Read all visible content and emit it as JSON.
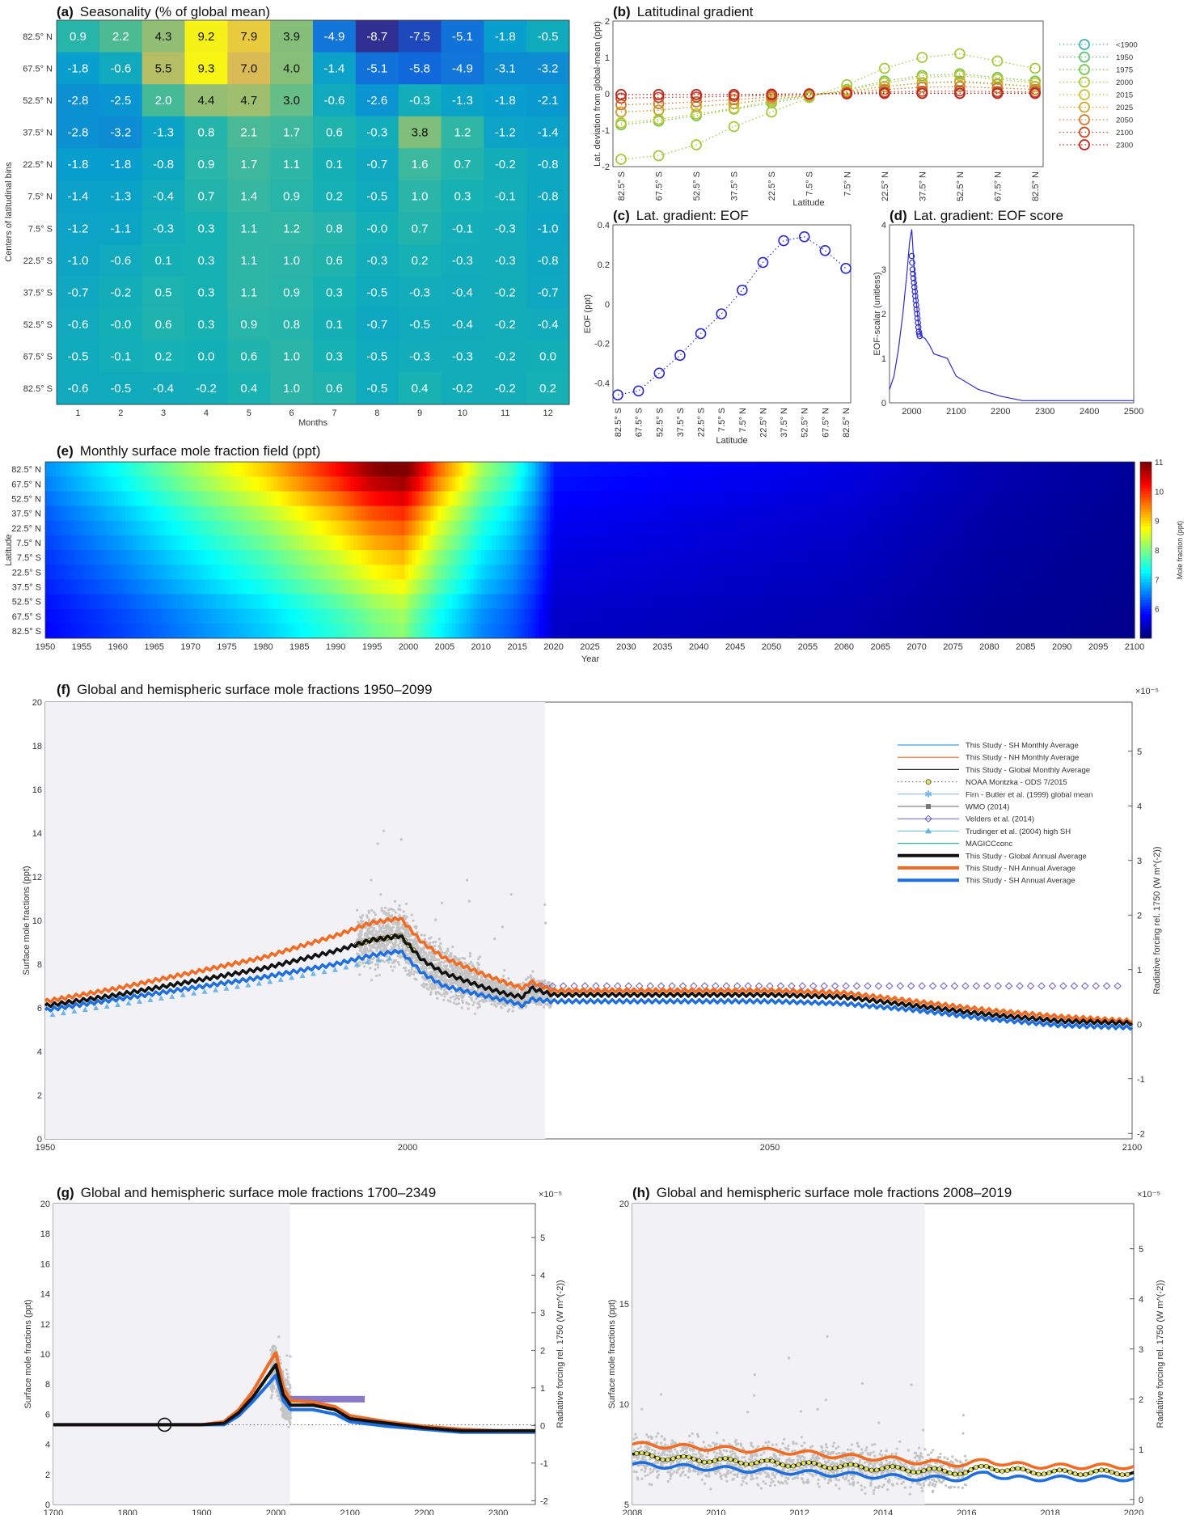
{
  "chart_data": [
    {
      "panel": "(a)",
      "type": "heatmap",
      "title": "Seasonality (% of global mean)",
      "xlabel": "Months",
      "ylabel": "Centers of latitudinal bins",
      "columns": [
        "1",
        "2",
        "3",
        "4",
        "5",
        "6",
        "7",
        "8",
        "9",
        "10",
        "11",
        "12"
      ],
      "rows": [
        "82.5° N",
        "67.5° N",
        "52.5° N",
        "37.5° N",
        "22.5° N",
        "7.5° N",
        "7.5° S",
        "22.5° S",
        "37.5° S",
        "52.5° S",
        "67.5° S",
        "82.5° S"
      ],
      "values": [
        [
          "0.9",
          "2.2",
          "4.3",
          "9.2",
          "7.9",
          "3.9",
          "-4.9",
          "-8.7",
          "-7.5",
          "-5.1",
          "-1.8",
          "-0.5"
        ],
        [
          "-1.8",
          "-0.6",
          "5.5",
          "9.3",
          "7.0",
          "4.0",
          "-1.4",
          "-5.1",
          "-5.8",
          "-4.9",
          "-3.1",
          "-3.2"
        ],
        [
          "-2.8",
          "-2.5",
          "2.0",
          "4.4",
          "4.7",
          "3.0",
          "-0.6",
          "-2.6",
          "-0.3",
          "-1.3",
          "-1.8",
          "-2.1"
        ],
        [
          "-2.8",
          "-3.2",
          "-1.3",
          "0.8",
          "2.1",
          "1.7",
          "0.6",
          "-0.3",
          "3.8",
          "1.2",
          "-1.2",
          "-1.4"
        ],
        [
          "-1.8",
          "-1.8",
          "-0.8",
          "0.9",
          "1.7",
          "1.1",
          "0.1",
          "-0.7",
          "1.6",
          "0.7",
          "-0.2",
          "-0.8"
        ],
        [
          "-1.4",
          "-1.3",
          "-0.4",
          "0.7",
          "1.4",
          "0.9",
          "0.2",
          "-0.5",
          "1.0",
          "0.3",
          "-0.1",
          "-0.8"
        ],
        [
          "-1.2",
          "-1.1",
          "-0.3",
          "0.3",
          "1.1",
          "1.2",
          "0.8",
          "-0.0",
          "0.7",
          "-0.1",
          "-0.3",
          "-1.0"
        ],
        [
          "-1.0",
          "-0.6",
          "0.1",
          "0.3",
          "1.1",
          "1.0",
          "0.6",
          "-0.3",
          "0.2",
          "-0.3",
          "-0.3",
          "-0.8"
        ],
        [
          "-0.7",
          "-0.2",
          "0.5",
          "0.3",
          "1.1",
          "0.9",
          "0.3",
          "-0.5",
          "-0.3",
          "-0.4",
          "-0.2",
          "-0.7"
        ],
        [
          "-0.6",
          "-0.0",
          "0.6",
          "0.3",
          "0.9",
          "0.8",
          "0.1",
          "-0.7",
          "-0.5",
          "-0.4",
          "-0.2",
          "-0.4"
        ],
        [
          "-0.5",
          "-0.1",
          "0.2",
          "0.0",
          "0.6",
          "1.0",
          "0.3",
          "-0.5",
          "-0.3",
          "-0.3",
          "-0.2",
          "0.0"
        ],
        [
          "-0.6",
          "-0.5",
          "-0.4",
          "-0.2",
          "0.4",
          "1.0",
          "0.6",
          "-0.5",
          "0.4",
          "-0.2",
          "-0.2",
          "0.2"
        ]
      ]
    },
    {
      "panel": "(b)",
      "type": "line",
      "title": "Latitudinal gradient",
      "xlabel": "Latitude",
      "ylabel": "Lat. deviation from global-mean (ppt)",
      "ylim": [
        -2,
        2
      ],
      "yticks": [
        "2",
        "1",
        "0",
        "-1",
        "-2"
      ],
      "x": [
        "82.5° S",
        "67.5° S",
        "52.5° S",
        "37.5° S",
        "22.5° S",
        "7.5° S",
        "7.5° N",
        "22.5° N",
        "37.5° N",
        "52.5° N",
        "67.5° N",
        "82.5° N"
      ],
      "series": [
        {
          "name": "<1900",
          "color": "#3fb9a6",
          "values": [
            -0.02,
            -0.02,
            -0.02,
            -0.02,
            -0.02,
            -0.01,
            0.01,
            0.02,
            0.02,
            0.02,
            0.02,
            0.02
          ]
        },
        {
          "name": "1950",
          "color": "#5cc46a",
          "values": [
            -0.5,
            -0.45,
            -0.35,
            -0.27,
            -0.15,
            -0.05,
            0.07,
            0.2,
            0.3,
            0.35,
            0.28,
            0.2
          ]
        },
        {
          "name": "1975",
          "color": "#72c84a",
          "values": [
            -0.85,
            -0.75,
            -0.6,
            -0.42,
            -0.25,
            -0.07,
            0.12,
            0.35,
            0.5,
            0.55,
            0.45,
            0.35
          ]
        },
        {
          "name": "2000",
          "color": "#a6cb39",
          "values": [
            -1.8,
            -1.7,
            -1.4,
            -0.9,
            -0.5,
            -0.1,
            0.25,
            0.7,
            1.0,
            1.1,
            0.9,
            0.7
          ]
        },
        {
          "name": "2015",
          "color": "#c3c531",
          "values": [
            -0.8,
            -0.7,
            -0.55,
            -0.4,
            -0.2,
            -0.05,
            0.1,
            0.3,
            0.45,
            0.5,
            0.4,
            0.3
          ]
        },
        {
          "name": "2025",
          "color": "#d2a62e",
          "values": [
            -0.5,
            -0.45,
            -0.35,
            -0.27,
            -0.14,
            -0.04,
            0.07,
            0.2,
            0.3,
            0.32,
            0.26,
            0.2
          ]
        },
        {
          "name": "2050",
          "color": "#d47a2a",
          "values": [
            -0.3,
            -0.27,
            -0.22,
            -0.16,
            -0.09,
            -0.02,
            0.04,
            0.12,
            0.18,
            0.2,
            0.16,
            0.12
          ]
        },
        {
          "name": "2100",
          "color": "#c94826",
          "values": [
            -0.12,
            -0.1,
            -0.09,
            -0.07,
            -0.04,
            -0.01,
            0.02,
            0.05,
            0.07,
            0.08,
            0.06,
            0.05
          ]
        },
        {
          "name": "2300",
          "color": "#c2261f",
          "values": [
            -0.02,
            -0.02,
            -0.02,
            -0.02,
            -0.01,
            0.0,
            0.0,
            0.01,
            0.01,
            0.01,
            0.01,
            0.01
          ]
        }
      ]
    },
    {
      "panel": "(c)",
      "type": "line",
      "title": "Lat. gradient: EOF",
      "xlabel": "Latitude",
      "ylabel": "EOF (ppt)",
      "ylim": [
        -0.5,
        0.4
      ],
      "yticks": [
        "0.4",
        "0.2",
        "0",
        "-0.2",
        "-0.4"
      ],
      "x": [
        "82.5° S",
        "67.5° S",
        "52.5° S",
        "37.5° S",
        "22.5° S",
        "7.5° S",
        "7.5° N",
        "22.5° N",
        "37.5° N",
        "52.5° N",
        "67.5° N",
        "82.5° N"
      ],
      "x_deg": [
        -82.5,
        -67.5,
        -52.5,
        -37.5,
        -22.5,
        -7.5,
        7.5,
        22.5,
        37.5,
        52.5,
        67.5,
        82.5
      ],
      "values": [
        -0.46,
        -0.44,
        -0.35,
        -0.26,
        -0.15,
        -0.05,
        0.07,
        0.21,
        0.32,
        0.34,
        0.27,
        0.18
      ]
    },
    {
      "panel": "(d)",
      "type": "line",
      "title": "Lat. gradient: EOF score",
      "xlabel": "",
      "ylabel": "EOF-scalar (unitless)",
      "xlim": [
        1950,
        2500
      ],
      "ylim": [
        0,
        4
      ],
      "xticks": [
        "2000",
        "2100",
        "2200",
        "2300",
        "2400",
        "2500"
      ],
      "yticks": [
        "4",
        "3",
        "2",
        "1",
        "0"
      ],
      "x": [
        1950,
        1960,
        1970,
        1980,
        1990,
        1995,
        2000,
        2005,
        2008,
        2010,
        2012,
        2015,
        2020,
        2030,
        2040,
        2050,
        2080,
        2100,
        2150,
        2200,
        2250,
        2300,
        2400,
        2500
      ],
      "values": [
        0.3,
        0.6,
        1.2,
        2.0,
        3.0,
        3.6,
        3.9,
        3.1,
        2.6,
        2.3,
        2.1,
        1.8,
        1.5,
        1.45,
        1.3,
        1.1,
        1.0,
        0.6,
        0.3,
        0.15,
        0.05,
        0.05,
        0.05,
        0.05
      ],
      "markers": {
        "x": [
          2000,
          2001,
          2002,
          2003,
          2004,
          2005,
          2006,
          2007,
          2008,
          2009,
          2010,
          2011,
          2012,
          2013,
          2014,
          2015,
          2016,
          2017,
          2018
        ],
        "values": [
          3.3,
          3.15,
          3.0,
          2.9,
          2.8,
          2.7,
          2.6,
          2.5,
          2.4,
          2.3,
          2.2,
          2.1,
          2.0,
          1.9,
          1.8,
          1.7,
          1.6,
          1.55,
          1.5
        ]
      }
    },
    {
      "panel": "(e)",
      "type": "heatmap",
      "title": "Monthly surface mole fraction field (ppt)",
      "xlabel": "Year",
      "ylabel": "Latitude",
      "colorbar_label": "Mole fraction (ppt)",
      "colorbar_ticks": [
        "11",
        "10",
        "9",
        "8",
        "7",
        "6"
      ],
      "xticks": [
        "1950",
        "1955",
        "1960",
        "1965",
        "1970",
        "1975",
        "1980",
        "1985",
        "1990",
        "1995",
        "2000",
        "2005",
        "2010",
        "2015",
        "2020",
        "2025",
        "2030",
        "2035",
        "2040",
        "2045",
        "2050",
        "2055",
        "2060",
        "2065",
        "2070",
        "2075",
        "2080",
        "2085",
        "2090",
        "2095",
        "2100"
      ],
      "rows": [
        "82.5° N",
        "67.5° N",
        "52.5° N",
        "37.5° N",
        "22.5° N",
        "7.5° N",
        "7.5° S",
        "22.5° S",
        "37.5° S",
        "52.5° S",
        "67.5° S",
        "82.5° S"
      ],
      "row_offset_ppt": [
        0.9,
        0.75,
        0.55,
        0.35,
        0.2,
        0.07,
        -0.07,
        -0.18,
        -0.3,
        -0.45,
        -0.55,
        -0.6
      ],
      "global_mean_ppt": {
        "x": [
          1950,
          1960,
          1970,
          1980,
          1990,
          1995,
          1999,
          2004,
          2010,
          2014,
          2017,
          2020,
          2060,
          2080,
          2100
        ],
        "values": [
          6.1,
          6.6,
          7.2,
          7.8,
          8.6,
          9.1,
          9.3,
          8.2,
          7.2,
          6.8,
          6.3,
          5.6,
          5.4,
          5.2,
          5.1
        ]
      },
      "vmin": 5,
      "vmax": 11
    },
    {
      "panel": "(f)",
      "type": "line",
      "title": "Global and hemispheric surface mole fractions 1950–2099",
      "xlabel": "",
      "ylabel": "Surface mole fractions (ppt)",
      "ylabel_right": "Radiative forcing rel. 1750 (W m^(-2))",
      "exponent_right": "×10⁻⁵",
      "xlim": [
        1950,
        2100
      ],
      "ylim": [
        0,
        20
      ],
      "xticks": [
        "1950",
        "2000",
        "2050",
        "2100"
      ],
      "yticks": [
        "20",
        "18",
        "16",
        "14",
        "12",
        "10",
        "8",
        "6",
        "4",
        "2",
        "0"
      ],
      "yticks_right": [
        "5",
        "4",
        "3",
        "2",
        "1",
        "0",
        "-1",
        "-2"
      ],
      "legend": [
        "This Study - SH Monthly Average",
        "This Study - NH Monthly Average",
        "This Study - Global Monthly Average",
        "NOAA Montzka - ODS 7/2015",
        "Firn - Butler et al. (1999) global mean",
        "WMO (2014)",
        "Velders et al. (2014)",
        "Trudinger et al. (2004) high SH",
        "MAGICCconc",
        "This Study - Global Annual Average",
        "This Study - NH Annual Average",
        "This Study - SH Annual Average"
      ],
      "x": [
        1950,
        1960,
        1970,
        1980,
        1990,
        1995,
        1999,
        2002,
        2005,
        2010,
        2014,
        2016,
        2017,
        2020,
        2040,
        2050,
        2060,
        2070,
        2080,
        2090,
        2100
      ],
      "series": [
        {
          "name": "This Study - NH Annual Average",
          "color": "#f26b21",
          "values": [
            6.3,
            6.9,
            7.6,
            8.3,
            9.3,
            9.9,
            10.1,
            9.0,
            8.3,
            7.6,
            7.1,
            6.9,
            7.2,
            6.8,
            6.8,
            6.8,
            6.7,
            6.3,
            5.9,
            5.6,
            5.4
          ]
        },
        {
          "name": "This Study - Global Annual Average",
          "color": "#111111",
          "values": [
            6.1,
            6.6,
            7.2,
            7.8,
            8.6,
            9.1,
            9.3,
            8.2,
            7.6,
            7.0,
            6.6,
            6.5,
            6.9,
            6.6,
            6.6,
            6.6,
            6.5,
            6.1,
            5.7,
            5.4,
            5.3
          ]
        },
        {
          "name": "This Study - SH Annual Average",
          "color": "#1d6fe0",
          "values": [
            5.9,
            6.4,
            6.9,
            7.4,
            8.0,
            8.4,
            8.6,
            7.6,
            7.0,
            6.6,
            6.3,
            6.1,
            6.4,
            6.3,
            6.3,
            6.3,
            6.2,
            5.9,
            5.5,
            5.2,
            5.1
          ]
        }
      ],
      "velders_level": 7.0,
      "shaded_until": 2019
    },
    {
      "panel": "(g)",
      "type": "line",
      "title": "Global and hemispheric surface mole fractions 1700–2349",
      "xlabel": "",
      "ylabel": "Surface mole fractions (ppt)",
      "ylabel_right": "Radiative forcing rel. 1750 (W m^(-2))",
      "exponent_right": "×10⁻⁵",
      "xlim": [
        1700,
        2350
      ],
      "ylim": [
        0,
        20
      ],
      "xticks": [
        "1700",
        "1800",
        "1900",
        "2000",
        "2100",
        "2200",
        "2300"
      ],
      "yticks": [
        "20",
        "18",
        "16",
        "14",
        "12",
        "10",
        "8",
        "6",
        "4",
        "2",
        "0"
      ],
      "yticks_right": [
        "5",
        "4",
        "3",
        "2",
        "1",
        "0",
        "-1",
        "-2"
      ],
      "x": [
        1700,
        1900,
        1930,
        1950,
        1970,
        1990,
        2000,
        2010,
        2020,
        2050,
        2080,
        2100,
        2150,
        2200,
        2250,
        2300,
        2350
      ],
      "series": [
        {
          "name": "This Study - NH Annual Average",
          "color": "#f26b21",
          "values": [
            5.3,
            5.3,
            5.5,
            6.3,
            7.6,
            9.3,
            10.1,
            7.8,
            6.9,
            6.8,
            6.5,
            5.9,
            5.5,
            5.2,
            5.0,
            4.9,
            4.9
          ]
        },
        {
          "name": "This Study - Global Annual Average",
          "color": "#111111",
          "values": [
            5.3,
            5.3,
            5.4,
            6.1,
            7.2,
            8.6,
            9.3,
            7.3,
            6.6,
            6.6,
            6.3,
            5.7,
            5.4,
            5.1,
            4.9,
            4.9,
            4.9
          ]
        },
        {
          "name": "This Study - SH Annual Average",
          "color": "#1d6fe0",
          "values": [
            5.3,
            5.3,
            5.3,
            5.9,
            6.9,
            8.0,
            8.6,
            6.9,
            6.3,
            6.3,
            6.0,
            5.5,
            5.2,
            5.0,
            4.8,
            4.8,
            4.8
          ]
        }
      ],
      "velders_span": [
        2015,
        2120
      ],
      "velders_level": 7.0,
      "marker_circle": {
        "x": 1850,
        "y": 5.3
      },
      "shaded_until": 2019
    },
    {
      "panel": "(h)",
      "type": "line",
      "title": "Global and hemispheric surface mole fractions 2008–2019",
      "xlabel": "",
      "ylabel": "Surface mole fractions (ppt)",
      "ylabel_right": "Radiative forcing rel. 1750 (W m^(-2))",
      "exponent_right": "×10⁻⁵",
      "xlim": [
        2008,
        2020
      ],
      "ylim": [
        5,
        20
      ],
      "xticks": [
        "2008",
        "2010",
        "2012",
        "2014",
        "2016",
        "2018",
        "2020"
      ],
      "yticks": [
        "20",
        "15",
        "10",
        "5"
      ],
      "yticks_right": [
        "5",
        "4",
        "3",
        "2",
        "1",
        "0"
      ],
      "x": [
        2008,
        2009,
        2010,
        2011,
        2012,
        2013,
        2014,
        2015,
        2016,
        2016.5,
        2017,
        2018,
        2019,
        2020
      ],
      "series": [
        {
          "name": "This Study - NH Annual Average",
          "color": "#f26b21",
          "values": [
            8.0,
            7.9,
            7.8,
            7.7,
            7.6,
            7.4,
            7.3,
            7.1,
            7.0,
            7.2,
            7.0,
            6.9,
            6.9,
            6.9
          ]
        },
        {
          "name": "This Study - Global Annual Average",
          "color": "#111111",
          "values": [
            7.5,
            7.3,
            7.2,
            7.1,
            7.0,
            6.9,
            6.8,
            6.7,
            6.6,
            6.9,
            6.7,
            6.6,
            6.6,
            6.6
          ]
        },
        {
          "name": "This Study - SH Annual Average",
          "color": "#1d6fe0",
          "values": [
            7.0,
            6.9,
            6.8,
            6.7,
            6.6,
            6.5,
            6.4,
            6.3,
            6.3,
            6.6,
            6.3,
            6.3,
            6.3,
            6.3
          ]
        }
      ],
      "shaded_until": 2015
    }
  ]
}
